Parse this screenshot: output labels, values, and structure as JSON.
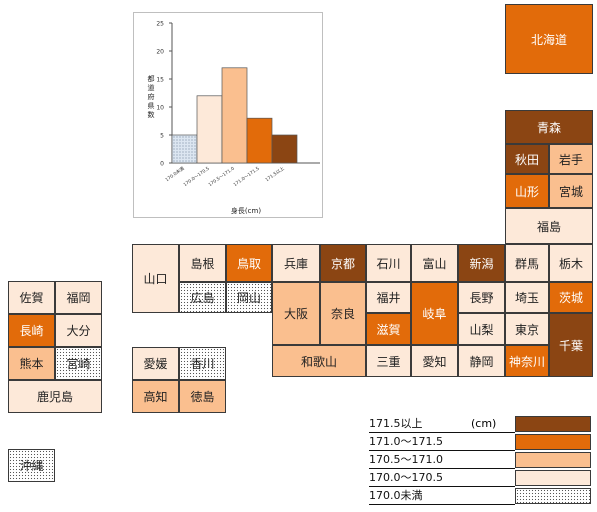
{
  "chart_data": {
    "type": "bar",
    "categories": [
      "170.0未満",
      "170.0〜170.5",
      "170.5〜171.0",
      "171.0〜171.5",
      "171.5以上"
    ],
    "values": [
      5,
      12,
      17,
      8,
      5
    ],
    "colors": [
      "#dce6f1",
      "#fde9d9",
      "#fabf8f",
      "#e26b0a",
      "#8b4513"
    ],
    "xlabel": "身長(cm)",
    "ylabel": "都道府県数",
    "yticks": [
      0,
      5,
      10,
      15,
      20,
      25
    ],
    "ylim": [
      0,
      25
    ],
    "grid": false
  },
  "legend": {
    "unit": "(cm)",
    "items": [
      {
        "label": "171.5以上",
        "cls": "c4"
      },
      {
        "label": "171.0〜171.5",
        "cls": "c3"
      },
      {
        "label": "170.5〜171.0",
        "cls": "c2"
      },
      {
        "label": "170.0〜170.5",
        "cls": "c1"
      },
      {
        "label": "170.0未満",
        "cls": "c0"
      }
    ]
  },
  "prefectures": {
    "hokkaido": "北海道",
    "aomori": "青森",
    "akita": "秋田",
    "iwate": "岩手",
    "yamagata": "山形",
    "miyagi": "宮城",
    "fukushima": "福島",
    "gunma": "群馬",
    "tochigi": "栃木",
    "saitama": "埼玉",
    "ibaraki": "茨城",
    "tokyo": "東京",
    "chiba": "千葉",
    "kanagawa": "神奈川",
    "niigata": "新潟",
    "nagano": "長野",
    "yamanashi": "山梨",
    "shizuoka": "静岡",
    "toyama": "富山",
    "gifu": "岐阜",
    "aichi": "愛知",
    "ishikawa": "石川",
    "fukui": "福井",
    "shiga": "滋賀",
    "mie": "三重",
    "kyoto": "京都",
    "nara": "奈良",
    "wakayama": "和歌山",
    "hyogo": "兵庫",
    "osaka": "大阪",
    "tottori": "鳥取",
    "okayama": "岡山",
    "shimane": "島根",
    "hiroshima": "広島",
    "yamaguchi": "山口",
    "ehime": "愛媛",
    "kagawa": "香川",
    "kochi": "高知",
    "tokushima": "徳島",
    "saga": "佐賀",
    "fukuoka": "福岡",
    "nagasaki": "長崎",
    "oita": "大分",
    "kumamoto": "熊本",
    "miyazaki": "宮崎",
    "kagoshima": "鹿児島",
    "okinawa": "沖縄"
  }
}
